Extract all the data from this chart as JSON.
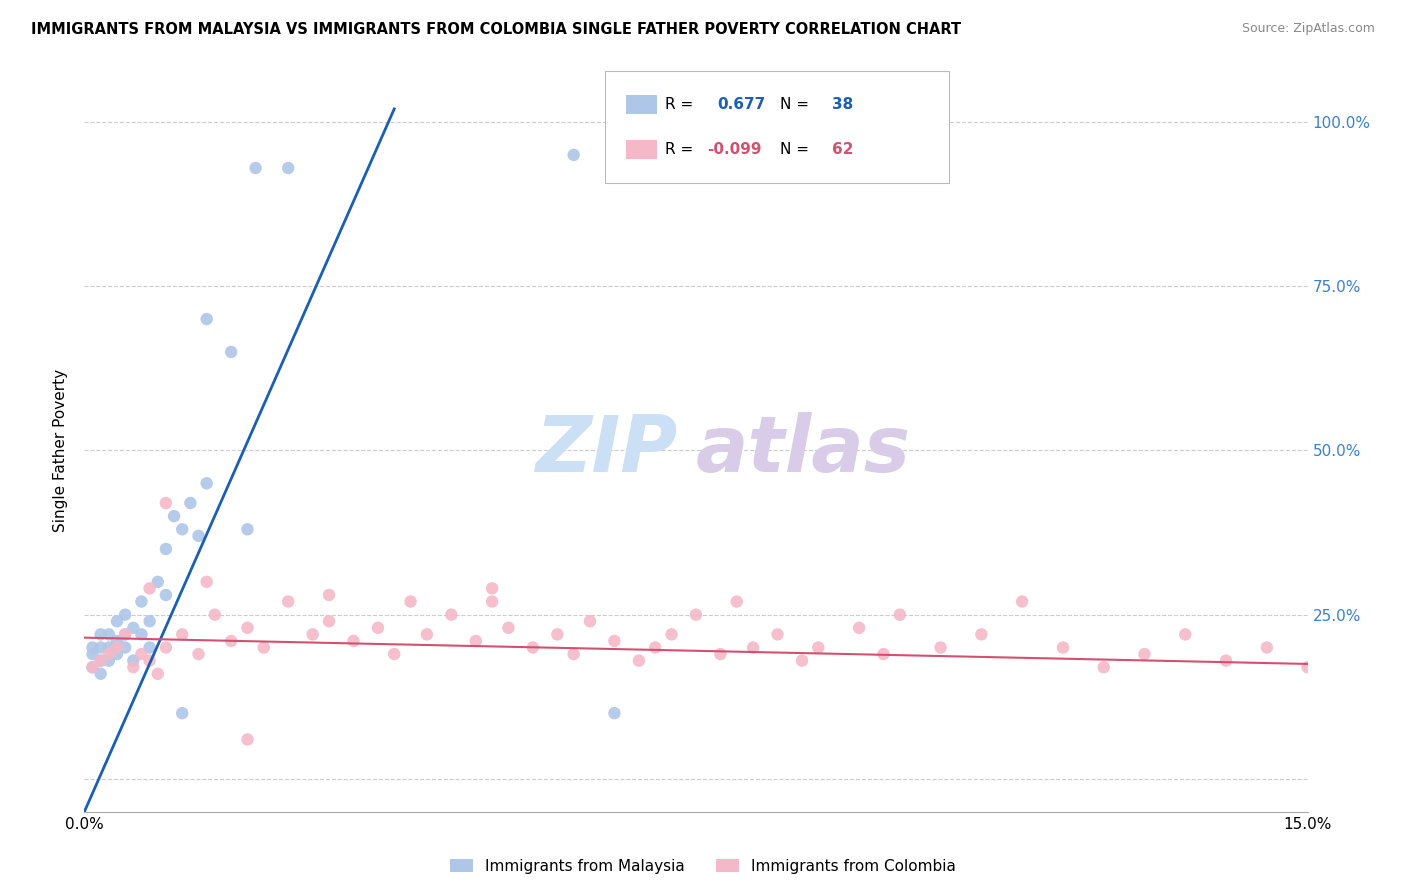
{
  "title": "IMMIGRANTS FROM MALAYSIA VS IMMIGRANTS FROM COLOMBIA SINGLE FATHER POVERTY CORRELATION CHART",
  "source": "Source: ZipAtlas.com",
  "ylabel": "Single Father Poverty",
  "legend_label_1": "Immigrants from Malaysia",
  "legend_label_2": "Immigrants from Colombia",
  "r1": 0.677,
  "n1": 38,
  "r2": -0.099,
  "n2": 62,
  "color1": "#aec6e8",
  "color2": "#f4b8c8",
  "line_color1": "#1a5fb4",
  "line_color2": "#d45070",
  "x_min": 0.0,
  "x_max": 0.15,
  "y_min": -0.05,
  "y_max": 1.05,
  "y_ticks": [
    0.0,
    0.25,
    0.5,
    0.75,
    1.0
  ],
  "y_tick_labels_right": [
    "",
    "25.0%",
    "50.0%",
    "75.0%",
    "100.0%"
  ],
  "malaysia_x": [
    0.001,
    0.001,
    0.001,
    0.002,
    0.002,
    0.002,
    0.002,
    0.003,
    0.003,
    0.003,
    0.004,
    0.004,
    0.004,
    0.005,
    0.005,
    0.005,
    0.006,
    0.006,
    0.007,
    0.007,
    0.008,
    0.008,
    0.009,
    0.01,
    0.01,
    0.011,
    0.012,
    0.013,
    0.014,
    0.015,
    0.018,
    0.02,
    0.021,
    0.025,
    0.06,
    0.065,
    0.012,
    0.015
  ],
  "malaysia_y": [
    0.17,
    0.19,
    0.2,
    0.18,
    0.2,
    0.22,
    0.16,
    0.18,
    0.2,
    0.22,
    0.21,
    0.24,
    0.19,
    0.22,
    0.2,
    0.25,
    0.23,
    0.18,
    0.27,
    0.22,
    0.24,
    0.2,
    0.3,
    0.28,
    0.35,
    0.4,
    0.38,
    0.42,
    0.37,
    0.45,
    0.65,
    0.38,
    0.93,
    0.93,
    0.95,
    0.1,
    0.1,
    0.7
  ],
  "colombia_x": [
    0.001,
    0.002,
    0.003,
    0.004,
    0.005,
    0.006,
    0.007,
    0.008,
    0.009,
    0.01,
    0.012,
    0.014,
    0.016,
    0.018,
    0.02,
    0.022,
    0.025,
    0.028,
    0.03,
    0.033,
    0.036,
    0.038,
    0.04,
    0.042,
    0.045,
    0.048,
    0.05,
    0.052,
    0.055,
    0.058,
    0.06,
    0.062,
    0.065,
    0.068,
    0.07,
    0.072,
    0.075,
    0.078,
    0.08,
    0.082,
    0.085,
    0.088,
    0.09,
    0.095,
    0.098,
    0.1,
    0.105,
    0.11,
    0.115,
    0.12,
    0.125,
    0.13,
    0.135,
    0.14,
    0.145,
    0.15,
    0.008,
    0.015,
    0.03,
    0.05,
    0.02,
    0.01
  ],
  "colombia_y": [
    0.17,
    0.18,
    0.19,
    0.2,
    0.22,
    0.17,
    0.19,
    0.18,
    0.16,
    0.2,
    0.22,
    0.19,
    0.25,
    0.21,
    0.23,
    0.2,
    0.27,
    0.22,
    0.24,
    0.21,
    0.23,
    0.19,
    0.27,
    0.22,
    0.25,
    0.21,
    0.27,
    0.23,
    0.2,
    0.22,
    0.19,
    0.24,
    0.21,
    0.18,
    0.2,
    0.22,
    0.25,
    0.19,
    0.27,
    0.2,
    0.22,
    0.18,
    0.2,
    0.23,
    0.19,
    0.25,
    0.2,
    0.22,
    0.27,
    0.2,
    0.17,
    0.19,
    0.22,
    0.18,
    0.2,
    0.17,
    0.29,
    0.3,
    0.28,
    0.29,
    0.06,
    0.42
  ],
  "watermark_zip_color": "#cce0f5",
  "watermark_atlas_color": "#d8cce8"
}
